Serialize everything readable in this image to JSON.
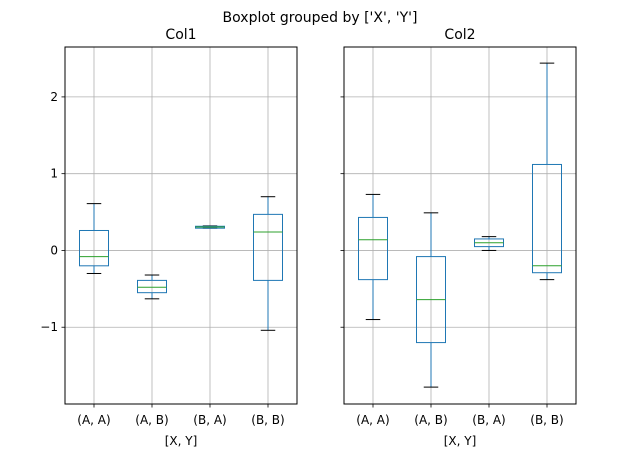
{
  "suptitle": "Boxplot grouped by ['X', 'Y']",
  "colors": {
    "box": "#1f77b4",
    "median": "#2ca02c",
    "grid": "#b0b0b0",
    "axes": "#000000"
  },
  "chart_data": [
    {
      "type": "boxplot",
      "title": "Col1",
      "xlabel": "[X, Y]",
      "ylabel": "",
      "ylim": [
        -2.0,
        2.65
      ],
      "yticks": [
        2,
        1,
        0,
        -1
      ],
      "ytick_labels": [
        "2",
        "1",
        "0",
        "−1"
      ],
      "grid": true,
      "categories": [
        "(A, A)",
        "(A, B)",
        "(B, A)",
        "(B, B)"
      ],
      "boxes": [
        {
          "whislo": -0.3,
          "q1": -0.2,
          "med": -0.08,
          "q3": 0.26,
          "whishi": 0.61
        },
        {
          "whislo": -0.63,
          "q1": -0.55,
          "med": -0.48,
          "q3": -0.39,
          "whishi": -0.32
        },
        {
          "whislo": 0.29,
          "q1": 0.29,
          "med": 0.305,
          "q3": 0.315,
          "whishi": 0.32
        },
        {
          "whislo": -1.04,
          "q1": -0.39,
          "med": 0.24,
          "q3": 0.47,
          "whishi": 0.7
        }
      ]
    },
    {
      "type": "boxplot",
      "title": "Col2",
      "xlabel": "[X, Y]",
      "ylabel": "",
      "ylim": [
        -2.0,
        2.65
      ],
      "yticks": [
        2,
        1,
        0,
        -1
      ],
      "ytick_labels": [],
      "grid": true,
      "categories": [
        "(A, A)",
        "(A, B)",
        "(B, A)",
        "(B, B)"
      ],
      "boxes": [
        {
          "whislo": -0.9,
          "q1": -0.38,
          "med": 0.14,
          "q3": 0.43,
          "whishi": 0.73
        },
        {
          "whislo": -1.78,
          "q1": -1.2,
          "med": -0.64,
          "q3": -0.08,
          "whishi": 0.49
        },
        {
          "whislo": 0.0,
          "q1": 0.05,
          "med": 0.1,
          "q3": 0.15,
          "whishi": 0.18
        },
        {
          "whislo": -0.38,
          "q1": -0.29,
          "med": -0.2,
          "q3": 1.12,
          "whishi": 2.44
        }
      ]
    }
  ]
}
